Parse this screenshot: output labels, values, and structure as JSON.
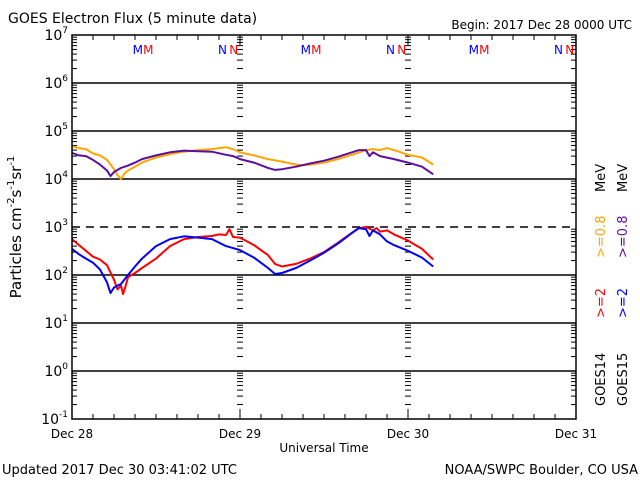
{
  "chart_data": {
    "type": "line",
    "title": "GOES Electron Flux (5 minute data)",
    "begin_label": "Begin: 2017 Dec 28 0000 UTC",
    "xlabel": "Universal Time",
    "ylabel_parts": {
      "base": "Particles cm",
      "exp1": "-2",
      "s": "s",
      "exp2": "-1",
      "sr": "sr",
      "exp3": "-1"
    },
    "yscale": "log",
    "ylim_exp": [
      -1,
      7
    ],
    "ytick_exponents": [
      "7",
      "6",
      "5",
      "4",
      "3",
      "2",
      "1",
      "0",
      "-1"
    ],
    "xlim_hours": [
      0,
      72
    ],
    "xtick_labels": [
      "Dec 28",
      "Dec 29",
      "Dec 30",
      "Dec 31"
    ],
    "threshold_value": 1000,
    "markers": [
      {
        "label": "M",
        "hour": 9.4,
        "satellite": "GOES15"
      },
      {
        "label": "M",
        "hour": 10.9,
        "satellite": "GOES14"
      },
      {
        "label": "N",
        "hour": 21.5,
        "satellite": "GOES15"
      },
      {
        "label": "N",
        "hour": 23.1,
        "satellite": "GOES14"
      },
      {
        "label": "M",
        "hour": 33.4,
        "satellite": "GOES15"
      },
      {
        "label": "M",
        "hour": 34.9,
        "satellite": "GOES14"
      },
      {
        "label": "N",
        "hour": 45.5,
        "satellite": "GOES15"
      },
      {
        "label": "N",
        "hour": 47.1,
        "satellite": "GOES14"
      },
      {
        "label": "M",
        "hour": 57.4,
        "satellite": "GOES15"
      },
      {
        "label": "M",
        "hour": 58.9,
        "satellite": "GOES14"
      },
      {
        "label": "N",
        "hour": 69.5,
        "satellite": "GOES15"
      },
      {
        "label": "N",
        "hour": 71.1,
        "satellite": "GOES14"
      }
    ],
    "legend": [
      {
        "sat": "GOES14",
        "e2": ">=2",
        "e08": ">=0.8",
        "unit": "MeV"
      },
      {
        "sat": "GOES15",
        "e2": ">=2",
        "e08": ">=0.8",
        "unit": "MeV"
      }
    ],
    "legend_placement": "right-vertical",
    "series": [
      {
        "name": "GOES14 >=0.8 MeV",
        "color": "#ffa500",
        "hours": [
          0,
          1,
          2,
          3,
          4,
          5,
          6,
          6.5,
          7,
          7.5,
          8,
          9,
          10,
          12,
          14,
          16,
          18,
          20,
          21,
          22,
          23,
          24,
          26,
          28,
          30,
          32,
          33,
          34,
          36,
          38,
          40,
          42,
          43,
          44,
          45,
          46,
          47,
          48,
          50,
          51.6
        ],
        "values": [
          48000,
          44000,
          42000,
          34000,
          31000,
          25000,
          16000,
          12000,
          10000,
          13000,
          15000,
          18000,
          22000,
          28000,
          33000,
          37000,
          40000,
          42000,
          44000,
          46000,
          42000,
          36000,
          31000,
          26000,
          23000,
          20000,
          19500,
          20000,
          22000,
          26000,
          32000,
          40000,
          42000,
          40000,
          44000,
          40000,
          36000,
          32000,
          28000,
          20000
        ]
      },
      {
        "name": "GOES15 >=0.8 MeV",
        "color": "#5c0f9e",
        "hours": [
          0,
          1,
          2,
          3,
          4,
          5,
          5.5,
          6,
          7,
          8,
          9,
          10,
          12,
          14,
          16,
          18,
          20,
          22,
          23,
          24,
          26,
          28,
          29,
          30,
          32,
          34,
          36,
          38,
          40,
          41,
          42,
          42.5,
          43,
          44,
          46,
          48,
          50,
          51.6
        ],
        "values": [
          35000,
          31000,
          30000,
          25000,
          20000,
          15000,
          11500,
          14000,
          17000,
          19000,
          22000,
          26000,
          31000,
          36000,
          39000,
          38000,
          37000,
          32000,
          30000,
          26000,
          22000,
          17000,
          15500,
          16000,
          18000,
          21000,
          24000,
          29000,
          36000,
          40000,
          40000,
          30000,
          36000,
          30000,
          26000,
          22000,
          18000,
          12500
        ]
      },
      {
        "name": "GOES14 >=2 MeV",
        "color": "#ff0000",
        "hours": [
          0,
          1,
          2,
          3,
          4,
          5,
          6,
          6.5,
          7,
          7.3,
          7.6,
          8,
          9,
          10,
          12,
          14,
          16,
          18,
          20,
          21,
          22,
          22.5,
          23,
          24,
          26,
          28,
          29,
          30,
          32,
          34,
          36,
          38,
          40,
          41,
          42,
          43,
          43.5,
          44,
          45,
          46,
          48,
          50,
          51.6
        ],
        "values": [
          560,
          420,
          320,
          240,
          210,
          160,
          80,
          50,
          60,
          40,
          55,
          90,
          110,
          140,
          220,
          400,
          560,
          620,
          650,
          700,
          680,
          900,
          620,
          600,
          420,
          260,
          170,
          150,
          170,
          220,
          300,
          470,
          760,
          950,
          1000,
          850,
          950,
          800,
          850,
          700,
          520,
          350,
          210
        ]
      },
      {
        "name": "GOES15 >=2 MeV",
        "color": "#0000ff",
        "hours": [
          0,
          1,
          2,
          3,
          4,
          5,
          5.5,
          6,
          6.5,
          7,
          8,
          9,
          10,
          12,
          14,
          16,
          18,
          20,
          22,
          24,
          26,
          28,
          29,
          30,
          32,
          34,
          36,
          38,
          40,
          41,
          42,
          42.5,
          43,
          44,
          45,
          46,
          48,
          50,
          51.6
        ],
        "values": [
          350,
          270,
          220,
          180,
          130,
          70,
          42,
          55,
          60,
          65,
          100,
          150,
          220,
          400,
          560,
          640,
          600,
          560,
          400,
          330,
          230,
          140,
          105,
          110,
          140,
          200,
          290,
          450,
          750,
          950,
          900,
          650,
          850,
          700,
          500,
          420,
          320,
          230,
          150
        ]
      }
    ]
  },
  "footer": {
    "updated": "Updated 2017 Dec 30 03:41:02 UTC",
    "source": "NOAA/SWPC Boulder, CO USA"
  }
}
